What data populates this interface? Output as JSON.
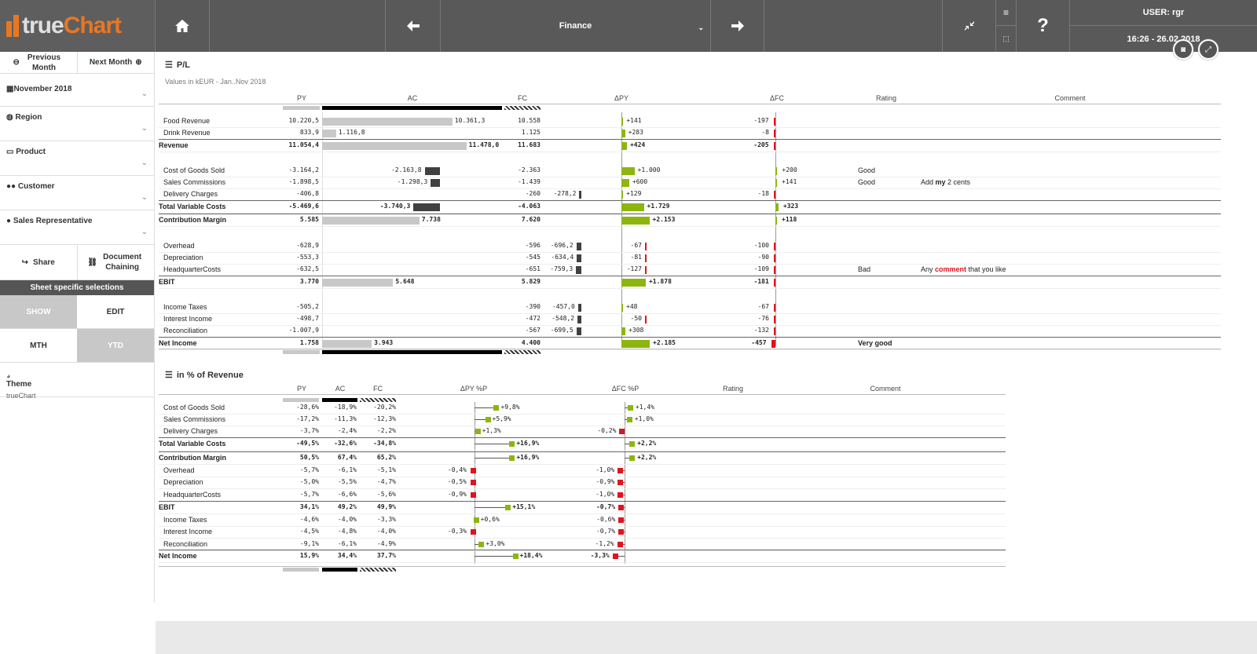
{
  "app": {
    "logo_left": "true",
    "logo_right": "Chart",
    "sheet": "Finance",
    "user": "USER: rgr",
    "datetime": "16:26 - 26.02.2018"
  },
  "nav": {
    "prev": "Previous Month",
    "next": "Next Month"
  },
  "filters": [
    {
      "label": "November 2018",
      "icon": "calendar-icon"
    },
    {
      "label": "Region",
      "icon": "globe-icon"
    },
    {
      "label": "Product",
      "icon": "basket-icon"
    },
    {
      "label": "Customer",
      "icon": "users-icon"
    },
    {
      "label": "Sales Representative",
      "icon": "user-icon"
    }
  ],
  "actions": {
    "share": "Share",
    "docchain": "Document Chaining"
  },
  "sheet_sel": "Sheet specific selections",
  "toggles": {
    "show": "SHOW",
    "edit": "EDIT",
    "mth": "MTH",
    "ytd": "YTD"
  },
  "theme": {
    "title": "Theme",
    "value": "trueChart"
  },
  "pl": {
    "title": "P/L",
    "subtitle": "Values in kEUR - Jan..Nov 2018",
    "headers": {
      "py": "PY",
      "ac": "AC",
      "fc": "FC",
      "dpy": "ΔPY",
      "dfc": "ΔFC",
      "rating": "Rating",
      "comment": "Comment"
    },
    "rows": [
      {
        "label": "Food Revenue",
        "py": "10.220,5",
        "ac": "10.361,3",
        "fc": "10.558",
        "dpy": "+141",
        "dfc": "-197",
        "acv": 10361.3,
        "dpyv": 141,
        "dfcv": -197
      },
      {
        "label": "Drink Revenue",
        "py": "833,9",
        "ac": "1.116,8",
        "fc": "1.125",
        "dpy": "+283",
        "dfc": "-8",
        "acv": 1116.8,
        "dpyv": 283,
        "dfcv": -8
      },
      {
        "label": "Revenue",
        "py": "11.054,4",
        "ac": "11.478,0",
        "fc": "11.683",
        "dpy": "+424",
        "dfc": "-205",
        "bold": true,
        "acv": 11478,
        "dpyv": 424,
        "dfcv": -205
      },
      {
        "label": "Cost of Goods Sold",
        "py": "-3.164,2",
        "ac": "-2.163,8",
        "fc": "-2.363",
        "dpy": "+1.000",
        "dfc": "+200",
        "rating": "Good",
        "acv": -2163.8,
        "dpyv": 1000,
        "dfcv": 200
      },
      {
        "label": "Sales Commissions",
        "py": "-1.898,5",
        "ac": "-1.298,3",
        "fc": "-1.439",
        "dpy": "+600",
        "dfc": "+141",
        "rating": "Good",
        "comment_pre": "Add ",
        "comment_hl": "my",
        "comment_post": " 2 cents",
        "acv": -1298.3,
        "dpyv": 600,
        "dfcv": 141
      },
      {
        "label": "Delivery Charges",
        "py": "-406,8",
        "ac": "-278,2",
        "fc": "-260",
        "dpy": "+129",
        "dfc": "-18",
        "acv": -278.2,
        "dpyv": 129,
        "dfcv": -18
      },
      {
        "label": "Total Variable Costs",
        "py": "-5.469,6",
        "ac": "-3.740,3",
        "fc": "-4.063",
        "dpy": "+1.729",
        "dfc": "+323",
        "bold": true,
        "acv": -3740.3,
        "dpyv": 1729,
        "dfcv": 323
      },
      {
        "label": "Contribution Margin",
        "py": "5.585",
        "ac": "7.738",
        "fc": "7.620",
        "dpy": "+2.153",
        "dfc": "+118",
        "bold": true,
        "acv": 7738,
        "dpyv": 2153,
        "dfcv": 118
      },
      {
        "label": "Overhead",
        "py": "-628,9",
        "ac": "-696,2",
        "fc": "-596",
        "dpy": "-67",
        "dfc": "-100",
        "acv": -696.2,
        "dpyv": -67,
        "dfcv": -100
      },
      {
        "label": "Depreciation",
        "py": "-553,3",
        "ac": "-634,4",
        "fc": "-545",
        "dpy": "-81",
        "dfc": "-90",
        "acv": -634.4,
        "dpyv": -81,
        "dfcv": -90
      },
      {
        "label": "HeadquarterCosts",
        "py": "-632,5",
        "ac": "-759,3",
        "fc": "-651",
        "dpy": "-127",
        "dfc": "-109",
        "rating": "Bad",
        "comment_pre": "Any ",
        "comment_hl": "comment",
        "comment_post": " that you like",
        "acv": -759.3,
        "dpyv": -127,
        "dfcv": -109
      },
      {
        "label": "EBIT",
        "py": "3.770",
        "ac": "5.648",
        "fc": "5.829",
        "dpy": "+1.878",
        "dfc": "-181",
        "bold": true,
        "acv": 5648,
        "dpyv": 1878,
        "dfcv": -181
      },
      {
        "label": "Income Taxes",
        "py": "-505,2",
        "ac": "-457,0",
        "fc": "-390",
        "dpy": "+48",
        "dfc": "-67",
        "acv": -457,
        "dpyv": 48,
        "dfcv": -67
      },
      {
        "label": "Interest Income",
        "py": "-498,7",
        "ac": "-548,2",
        "fc": "-472",
        "dpy": "-50",
        "dfc": "-76",
        "acv": -548.2,
        "dpyv": -50,
        "dfcv": -76
      },
      {
        "label": "Reconciliation",
        "py": "-1.007,9",
        "ac": "-699,5",
        "fc": "-567",
        "dpy": "+308",
        "dfc": "-132",
        "acv": -699.5,
        "dpyv": 308,
        "dfcv": -132
      },
      {
        "label": "Net Income",
        "py": "1.758",
        "ac": "3.943",
        "fc": "4.400",
        "dpy": "+2.185",
        "dfc": "-457",
        "bold": true,
        "rating": "Very good",
        "acv": 3943,
        "dpyv": 2185,
        "dfcv": -457
      }
    ]
  },
  "pct": {
    "title": "in % of Revenue",
    "headers": {
      "py": "PY",
      "ac": "AC",
      "fc": "FC",
      "dpy": "ΔPY %P",
      "dfc": "ΔFC %P",
      "rating": "Rating",
      "comment": "Comment"
    },
    "rows": [
      {
        "label": "Cost of Goods Sold",
        "py": "-28,6%",
        "ac": "-18,9%",
        "fc": "-20,2%",
        "dpy": "+9,8%",
        "dfc": "+1,4%",
        "dpyv": 9.8,
        "dfcv": 1.4
      },
      {
        "label": "Sales Commissions",
        "py": "-17,2%",
        "ac": "-11,3%",
        "fc": "-12,3%",
        "dpy": "+5,9%",
        "dfc": "+1,0%",
        "dpyv": 5.9,
        "dfcv": 1.0
      },
      {
        "label": "Delivery Charges",
        "py": "-3,7%",
        "ac": "-2,4%",
        "fc": "-2,2%",
        "dpy": "+1,3%",
        "dfc": "-0,2%",
        "dpyv": 1.3,
        "dfcv": -0.2
      },
      {
        "label": "Total Variable Costs",
        "py": "-49,5%",
        "ac": "-32,6%",
        "fc": "-34,8%",
        "dpy": "+16,9%",
        "dfc": "+2,2%",
        "bold": true,
        "dpyv": 16.9,
        "dfcv": 2.2
      },
      {
        "label": "Contribution Margin",
        "py": "50,5%",
        "ac": "67,4%",
        "fc": "65,2%",
        "dpy": "+16,9%",
        "dfc": "+2,2%",
        "bold": true,
        "dpyv": 16.9,
        "dfcv": 2.2
      },
      {
        "label": "Overhead",
        "py": "-5,7%",
        "ac": "-6,1%",
        "fc": "-5,1%",
        "dpy": "-0,4%",
        "dfc": "-1,0%",
        "dpyv": -0.4,
        "dfcv": -1.0
      },
      {
        "label": "Depreciation",
        "py": "-5,0%",
        "ac": "-5,5%",
        "fc": "-4,7%",
        "dpy": "-0,5%",
        "dfc": "-0,9%",
        "dpyv": -0.5,
        "dfcv": -0.9
      },
      {
        "label": "HeadquarterCosts",
        "py": "-5,7%",
        "ac": "-6,6%",
        "fc": "-5,6%",
        "dpy": "-0,9%",
        "dfc": "-1,0%",
        "dpyv": -0.9,
        "dfcv": -1.0
      },
      {
        "label": "EBIT",
        "py": "34,1%",
        "ac": "49,2%",
        "fc": "49,9%",
        "dpy": "+15,1%",
        "dfc": "-0,7%",
        "bold": true,
        "dpyv": 15.1,
        "dfcv": -0.7
      },
      {
        "label": "Income Taxes",
        "py": "-4,6%",
        "ac": "-4,0%",
        "fc": "-3,3%",
        "dpy": "+0,6%",
        "dfc": "-0,6%",
        "dpyv": 0.6,
        "dfcv": -0.6
      },
      {
        "label": "Interest Income",
        "py": "-4,5%",
        "ac": "-4,8%",
        "fc": "-4,0%",
        "dpy": "-0,3%",
        "dfc": "-0,7%",
        "dpyv": -0.3,
        "dfcv": -0.7
      },
      {
        "label": "Reconciliation",
        "py": "-9,1%",
        "ac": "-6,1%",
        "fc": "-4,9%",
        "dpy": "+3,0%",
        "dfc": "-1,2%",
        "dpyv": 3.0,
        "dfcv": -1.2
      },
      {
        "label": "Net Income",
        "py": "15,9%",
        "ac": "34,4%",
        "fc": "37,7%",
        "dpy": "+18,4%",
        "dfc": "-3,3%",
        "bold": true,
        "dpyv": 18.4,
        "dfcv": -3.3
      }
    ]
  },
  "colors": {
    "pos": "#8db510",
    "neg": "#e0141e",
    "ac": "#404040",
    "acsub": "#c8c8c8",
    "py": "#c8c8c8"
  }
}
